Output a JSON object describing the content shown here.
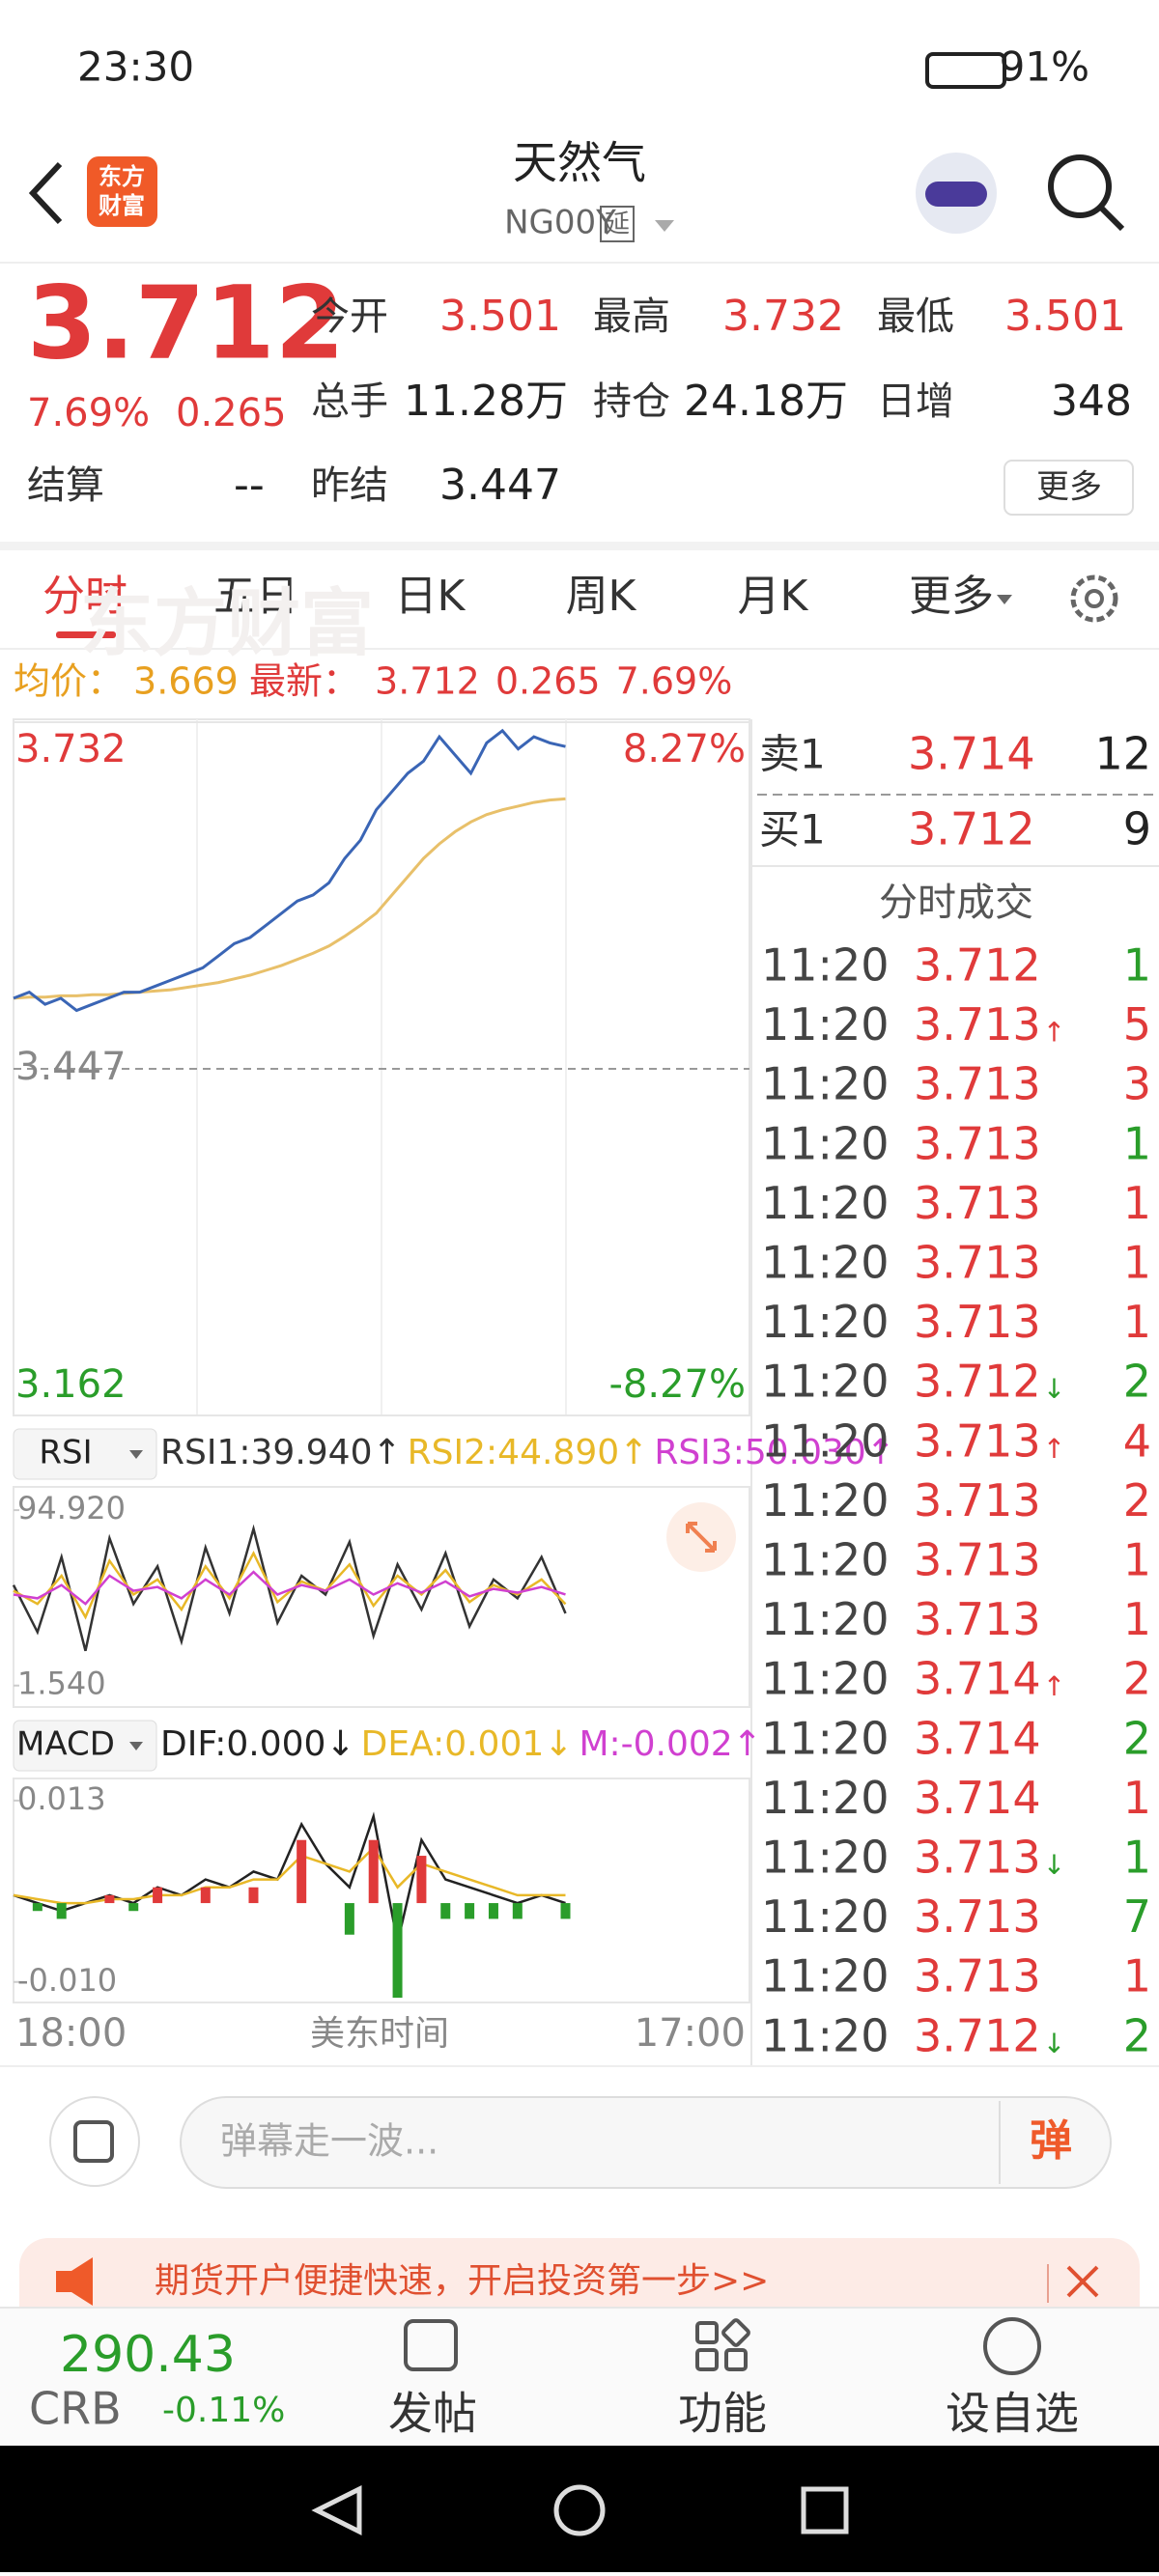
{
  "status_bar": {
    "time": "23:30",
    "battery": "91%"
  },
  "header": {
    "title": "天然气",
    "code": "NG00Y",
    "tag": "延",
    "logo": [
      "东方",
      "财富"
    ]
  },
  "quote": {
    "price": "3.712",
    "change_pct": "7.69%",
    "change": "0.265",
    "fields": [
      {
        "label": "今开",
        "value": "3.501",
        "color": "#e03a3a"
      },
      {
        "label": "最高",
        "value": "3.732",
        "color": "#e03a3a"
      },
      {
        "label": "最低",
        "value": "3.501",
        "color": "#e03a3a"
      },
      {
        "label": "总手",
        "value": "11.28万",
        "color": "#222222"
      },
      {
        "label": "持仓",
        "value": "24.18万",
        "color": "#222222"
      },
      {
        "label": "日增",
        "value": "348",
        "color": "#222222"
      },
      {
        "label": "结算",
        "value": "--",
        "color": "#222222"
      },
      {
        "label": "昨结",
        "value": "3.447",
        "color": "#222222"
      }
    ],
    "more_button": "更多"
  },
  "tabs": {
    "items": [
      "分时",
      "五日",
      "日K",
      "周K",
      "月K",
      "更多"
    ],
    "active": 0
  },
  "info_line": {
    "avg_label": "均价：",
    "avg": "3.669",
    "last_label": "最新：",
    "last": "3.712",
    "change": "0.265",
    "change_pct": "7.69%"
  },
  "chart_data": [
    {
      "type": "line",
      "ylim": [
        3.162,
        3.732
      ],
      "yticks": [
        3.162,
        3.447,
        3.732
      ],
      "y2lim": [
        -8.27,
        8.27
      ],
      "y2ticks": [
        {
          "value": -8.27,
          "label": "-8.27%"
        },
        {
          "value": 8.27,
          "label": "8.27%"
        }
      ],
      "x_labels": [
        "18:00",
        "17:00"
      ],
      "x_title": "美东时间",
      "watermark": "东方财富",
      "series": [
        {
          "color": "#3a65b5",
          "values": [
            3.505,
            3.51,
            3.5,
            3.505,
            3.495,
            3.5,
            3.505,
            3.51,
            3.51,
            3.515,
            3.52,
            3.525,
            3.53,
            3.54,
            3.55,
            3.555,
            3.565,
            3.575,
            3.585,
            3.59,
            3.6,
            3.62,
            3.635,
            3.66,
            3.675,
            3.69,
            3.7,
            3.72,
            3.705,
            3.69,
            3.715,
            3.725,
            3.71,
            3.72,
            3.715,
            3.712
          ]
        },
        {
          "color": "#e8c06a",
          "values": [
            3.505,
            3.506,
            3.506,
            3.507,
            3.507,
            3.508,
            3.508,
            3.509,
            3.51,
            3.511,
            3.512,
            3.514,
            3.516,
            3.518,
            3.521,
            3.524,
            3.528,
            3.532,
            3.537,
            3.542,
            3.548,
            3.556,
            3.565,
            3.575,
            3.59,
            3.605,
            3.62,
            3.632,
            3.642,
            3.65,
            3.656,
            3.66,
            3.663,
            3.666,
            3.668,
            3.669
          ]
        }
      ]
    },
    {
      "type": "line",
      "indicator": "RSI",
      "ylim": [
        -9.9,
        107.3
      ],
      "yticks": [
        {
          "value": 1.54,
          "label": "1.540"
        },
        {
          "value": 94.92,
          "label": "94.920"
        }
      ],
      "series": [
        {
          "name": "RSI1:39.940↑",
          "color": "#333333",
          "values": [
            55,
            30,
            70,
            20,
            80,
            45,
            65,
            25,
            75,
            40,
            85,
            35,
            60,
            50,
            78,
            28,
            66,
            42,
            72,
            33,
            58,
            48,
            70,
            39.94
          ]
        },
        {
          "name": "RSI2:44.890↑",
          "color": "#e8b828",
          "values": [
            52,
            45,
            60,
            38,
            68,
            50,
            58,
            42,
            65,
            48,
            72,
            46,
            57,
            52,
            66,
            44,
            60,
            50,
            63,
            46,
            55,
            50,
            58,
            44.89
          ]
        },
        {
          "name": "RSI3:50.030↑",
          "color": "#d040d0",
          "values": [
            50,
            48,
            55,
            45,
            60,
            52,
            54,
            48,
            58,
            50,
            62,
            50,
            55,
            52,
            58,
            50,
            56,
            51,
            57,
            49,
            53,
            51,
            54,
            50.03
          ]
        }
      ]
    },
    {
      "type": "macd",
      "indicator": "MACD",
      "ylim": [
        -0.0126,
        0.0158
      ],
      "yticks": [
        {
          "value": -0.01,
          "label": "-0.010"
        },
        0.013
      ],
      "up_color": "#e03a3a",
      "down_color": "#2a9d2a",
      "series": [
        {
          "name": "DIF:0.000↓",
          "color": "#222222",
          "values": [
            0.001,
            0,
            -0.001,
            0,
            0.001,
            0,
            0.002,
            0.001,
            0.003,
            0.002,
            0.004,
            0.003,
            0.01,
            0.005,
            0.002,
            0.011,
            -0.005,
            0.008,
            0.003,
            0.002,
            0.001,
            0,
            0.001,
            0
          ]
        },
        {
          "name": "DEA:0.001↓",
          "color": "#e8b828",
          "values": [
            0.001,
            0.0005,
            0,
            0,
            0.0005,
            0.0005,
            0.001,
            0.001,
            0.002,
            0.002,
            0.003,
            0.003,
            0.006,
            0.005,
            0.004,
            0.007,
            0.002,
            0.005,
            0.004,
            0.003,
            0.002,
            0.001,
            0.001,
            0.001
          ]
        },
        {
          "name": "M:-0.002↑",
          "color": "#d040d0",
          "values": [
            0,
            -0.001,
            -0.002,
            0,
            0.001,
            -0.001,
            0.002,
            0,
            0.002,
            0,
            0.002,
            0,
            0.008,
            0,
            -0.004,
            0.008,
            -0.012,
            0.006,
            -0.002,
            -0.002,
            -0.002,
            -0.002,
            0,
            -0.002
          ]
        }
      ]
    }
  ],
  "order_book": [
    {
      "label": "卖1",
      "price": "3.714",
      "volume": "12"
    },
    {
      "label": "买1",
      "price": "3.712",
      "volume": "9"
    }
  ],
  "trades_title": "分时成交",
  "trades": [
    {
      "time": "11:20",
      "price": "3.712",
      "volume": "1",
      "color": "#2a9d2a"
    },
    {
      "time": "11:20",
      "price": "3.713",
      "arrow": "↑",
      "arrow_color": "#e03a3a",
      "volume": "5",
      "color": "#e03a3a"
    },
    {
      "time": "11:20",
      "price": "3.713",
      "volume": "3",
      "color": "#e03a3a"
    },
    {
      "time": "11:20",
      "price": "3.713",
      "volume": "1",
      "color": "#2a9d2a"
    },
    {
      "time": "11:20",
      "price": "3.713",
      "volume": "1",
      "color": "#e03a3a"
    },
    {
      "time": "11:20",
      "price": "3.713",
      "volume": "1",
      "color": "#e03a3a"
    },
    {
      "time": "11:20",
      "price": "3.713",
      "volume": "1",
      "color": "#e03a3a"
    },
    {
      "time": "11:20",
      "price": "3.712",
      "arrow": "↓",
      "arrow_color": "#2a9d2a",
      "volume": "2",
      "color": "#2a9d2a"
    },
    {
      "time": "11:20",
      "price": "3.713",
      "arrow": "↑",
      "arrow_color": "#e03a3a",
      "volume": "4",
      "color": "#e03a3a"
    },
    {
      "time": "11:20",
      "price": "3.713",
      "volume": "2",
      "color": "#e03a3a"
    },
    {
      "time": "11:20",
      "price": "3.713",
      "volume": "1",
      "color": "#e03a3a"
    },
    {
      "time": "11:20",
      "price": "3.713",
      "volume": "1",
      "color": "#e03a3a"
    },
    {
      "time": "11:20",
      "price": "3.714",
      "arrow": "↑",
      "arrow_color": "#e03a3a",
      "volume": "2",
      "color": "#e03a3a"
    },
    {
      "time": "11:20",
      "price": "3.714",
      "volume": "2",
      "color": "#2a9d2a"
    },
    {
      "time": "11:20",
      "price": "3.714",
      "volume": "1",
      "color": "#e03a3a"
    },
    {
      "time": "11:20",
      "price": "3.713",
      "arrow": "↓",
      "arrow_color": "#2a9d2a",
      "volume": "1",
      "color": "#2a9d2a"
    },
    {
      "time": "11:20",
      "price": "3.713",
      "volume": "7",
      "color": "#2a9d2a"
    },
    {
      "time": "11:20",
      "price": "3.713",
      "volume": "1",
      "color": "#e03a3a"
    },
    {
      "time": "11:20",
      "price": "3.712",
      "arrow": "↓",
      "arrow_color": "#2a9d2a",
      "volume": "2",
      "color": "#2a9d2a"
    }
  ],
  "comment_bar": {
    "placeholder": "弹幕走一波...",
    "button": "弹"
  },
  "banner": {
    "text": "期货开户便捷快速，开启投资第一步>>"
  },
  "bottom_nav": {
    "index_value": "290.43",
    "index_name": "CRB",
    "index_change": "-0.11%",
    "items": [
      "发帖",
      "功能",
      "设自选"
    ]
  }
}
